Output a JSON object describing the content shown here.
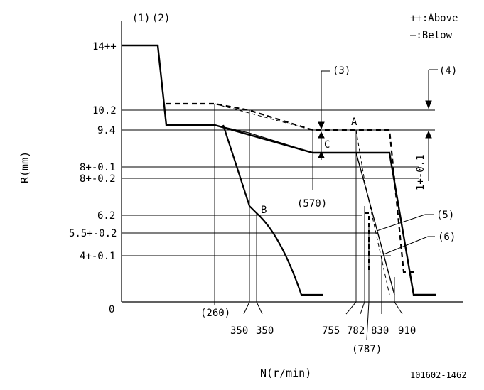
{
  "legend": {
    "above": "++:Above",
    "below": "—:Below"
  },
  "notes": {
    "n1": "(1)",
    "n2": "(2)",
    "n3": "(3)",
    "n4": "(4)",
    "n5": "(5)",
    "n6": "(6)"
  },
  "points": {
    "a": "A",
    "b": "B",
    "c": "C"
  },
  "axes": {
    "y_title": "R(mm)",
    "x_title": "N(r/min)",
    "y_ticks": [
      "14++",
      "10.2",
      "9.4",
      "8+-0.1",
      "8+-0.2",
      "6.2",
      "5.5+-0.2",
      "4+-0.1",
      "0"
    ],
    "x_ticks": [
      "(260)",
      "350",
      "350",
      "755",
      "782",
      "(787)",
      "830",
      "910"
    ],
    "mid_label": "(570)",
    "right_dim": "1+-0.1"
  },
  "drawing_number": "101602-1462"
}
